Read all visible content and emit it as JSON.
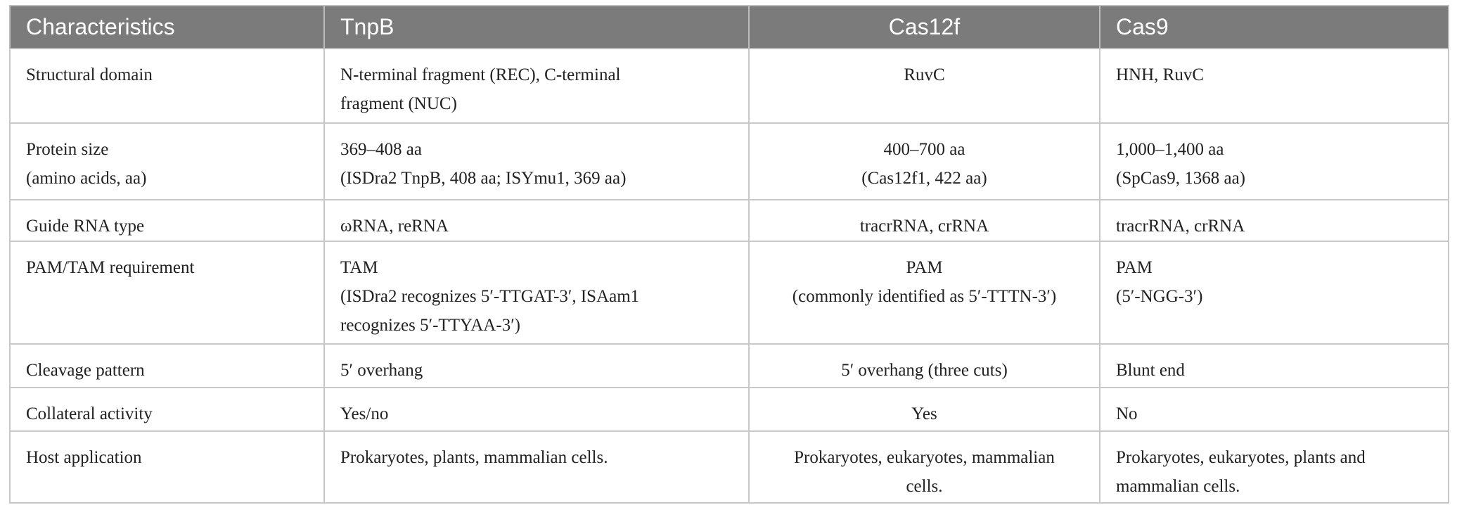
{
  "table": {
    "header": [
      "Characteristics",
      "TnpB",
      "Cas12f",
      "Cas9"
    ],
    "rows": [
      [
        [
          "Structural domain"
        ],
        [
          "N-terminal fragment (REC), C-terminal",
          "fragment (NUC)"
        ],
        [
          "RuvC"
        ],
        [
          "HNH, RuvC"
        ]
      ],
      [
        [
          "Protein size",
          "(amino acids, aa)"
        ],
        [
          "369–408 aa",
          "(ISDra2 TnpB, 408 aa; ISYmu1, 369 aa)"
        ],
        [
          "400–700 aa",
          "(Cas12f1, 422 aa)"
        ],
        [
          "1,000–1,400 aa",
          "(SpCas9, 1368 aa)"
        ]
      ],
      [
        [
          "Guide RNA type"
        ],
        [
          "ωRNA, reRNA"
        ],
        [
          "tracrRNA, crRNA"
        ],
        [
          "tracrRNA, crRNA"
        ]
      ],
      [
        [
          "PAM/TAM requirement"
        ],
        [
          "TAM",
          "(ISDra2 recognizes 5′-TTGAT-3′, ISAam1",
          "recognizes 5′-TTYAA-3′)"
        ],
        [
          "PAM",
          "(commonly identified as 5′-TTTN-3′)"
        ],
        [
          "PAM",
          "(5′-NGG-3′)"
        ]
      ],
      [
        [
          "Cleavage pattern"
        ],
        [
          "5′ overhang"
        ],
        [
          "5′ overhang (three cuts)"
        ],
        [
          "Blunt end"
        ]
      ],
      [
        [
          "Collateral activity"
        ],
        [
          "Yes/no"
        ],
        [
          "Yes"
        ],
        [
          "No"
        ]
      ],
      [
        [
          "Host application"
        ],
        [
          "Prokaryotes, plants, mammalian cells."
        ],
        [
          "Prokaryotes, eukaryotes, mammalian",
          "cells."
        ],
        [
          "Prokaryotes, eukaryotes, plants and",
          "mammalian cells."
        ]
      ]
    ]
  }
}
